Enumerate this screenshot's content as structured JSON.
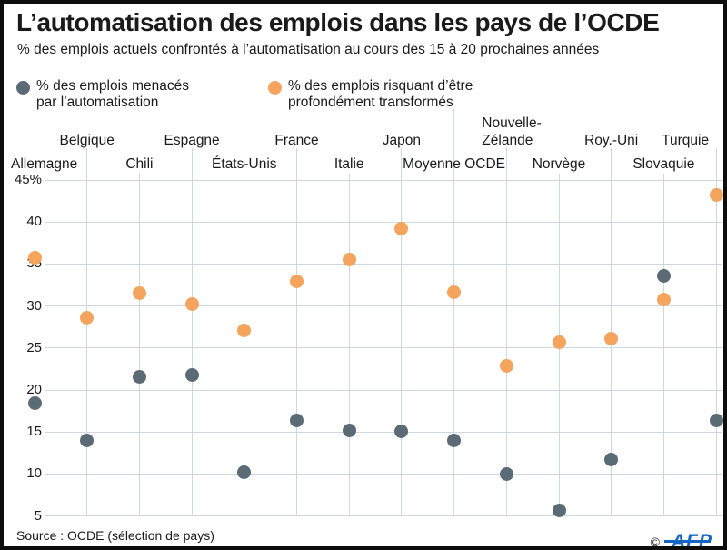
{
  "figure": {
    "title": "L’automatisation des emplois dans les pays de l’OCDE",
    "subtitle": "% des emplois actuels confrontés à l’automatisation au cours des 15 à 20 prochaines années",
    "source": "Source : OCDE (sélection de pays)",
    "copyright": "©",
    "brand": "AFP"
  },
  "legend": {
    "items": [
      {
        "label": "% des emplois menacés\npar l’automatisation",
        "color": "#5b6b76"
      },
      {
        "label": "% des emplois risquant d’être\nprofondément transformés",
        "color": "#f4a45c"
      }
    ]
  },
  "colors": {
    "dot_gray": "#5b6b76",
    "dot_orange": "#f4a45c",
    "gridline": "#ccd8de",
    "afp_blue": "#1566c3",
    "text": "#1a1a1a",
    "border": "#0d0d0d"
  },
  "chart_data": {
    "type": "scatter",
    "title": "L’automatisation des emplois dans les pays de l’OCDE",
    "subtitle": "% des emplois actuels confrontés à l’automatisation au cours des 15 à 20 prochaines années",
    "categories": [
      "Allemagne",
      "Belgique",
      "Chili",
      "Espagne",
      "États-Unis",
      "France",
      "Italie",
      "Japon",
      "Moyenne OCDE",
      "Nouvelle-\nZélande",
      "Norvège",
      "Roy.-Uni",
      "Slovaquie",
      "Turquie"
    ],
    "series": [
      {
        "name": "% des emplois menacés par l’automatisation",
        "color": "#5b6b76",
        "values": [
          18.4,
          14.0,
          21.6,
          21.8,
          10.2,
          16.4,
          15.2,
          15.1,
          14.0,
          10.0,
          5.7,
          11.7,
          33.6,
          16.4
        ]
      },
      {
        "name": "% des emplois risquant d’être profondément transformés",
        "color": "#f4a45c",
        "values": [
          35.8,
          28.6,
          31.5,
          30.2,
          27.1,
          32.9,
          35.5,
          39.2,
          31.6,
          22.9,
          25.7,
          26.1,
          30.8,
          43.2
        ]
      }
    ],
    "yticks": {
      "labels": [
        "45%",
        "40",
        "35",
        "30",
        "25",
        "20",
        "15",
        "10",
        "5"
      ],
      "values": [
        45,
        40,
        35,
        30,
        25,
        20,
        15,
        10,
        5
      ]
    },
    "ylim": [
      5,
      45
    ],
    "grid": true,
    "legend_position": "top-left",
    "xlabel": "",
    "ylabel": ""
  }
}
